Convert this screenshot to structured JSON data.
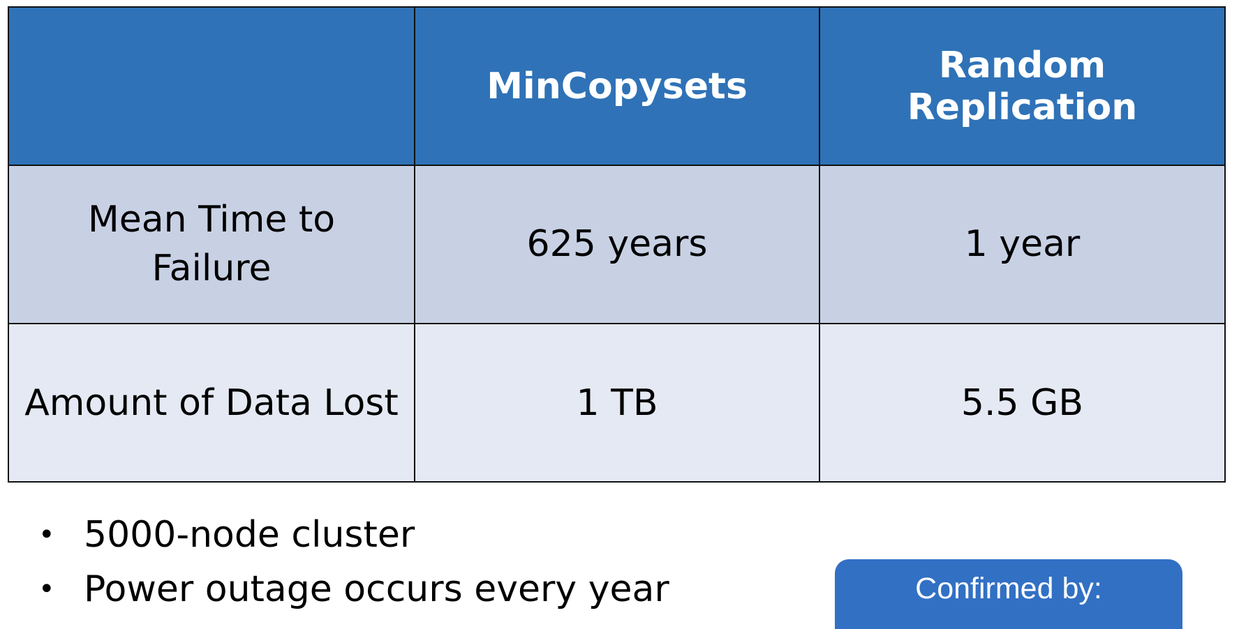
{
  "table": {
    "headers": [
      "",
      "MinCopysets",
      "Random Replication"
    ],
    "rows": [
      {
        "label_line1": "Mean Time to",
        "label_line2": "Failure",
        "mincopysets": "625 years",
        "random": "1 year"
      },
      {
        "label": "Amount of Data Lost",
        "mincopysets": "1 TB",
        "random": "5.5 GB"
      }
    ]
  },
  "notes": [
    "5000-node cluster",
    "Power outage occurs every year"
  ],
  "confirmed_box": {
    "label": "Confirmed by:"
  },
  "colors": {
    "header_bg": "#2f72b7",
    "row1_bg": "#c8d1e4",
    "row2_bg": "#e5e9f3",
    "confirmed_bg": "#3270c4"
  }
}
